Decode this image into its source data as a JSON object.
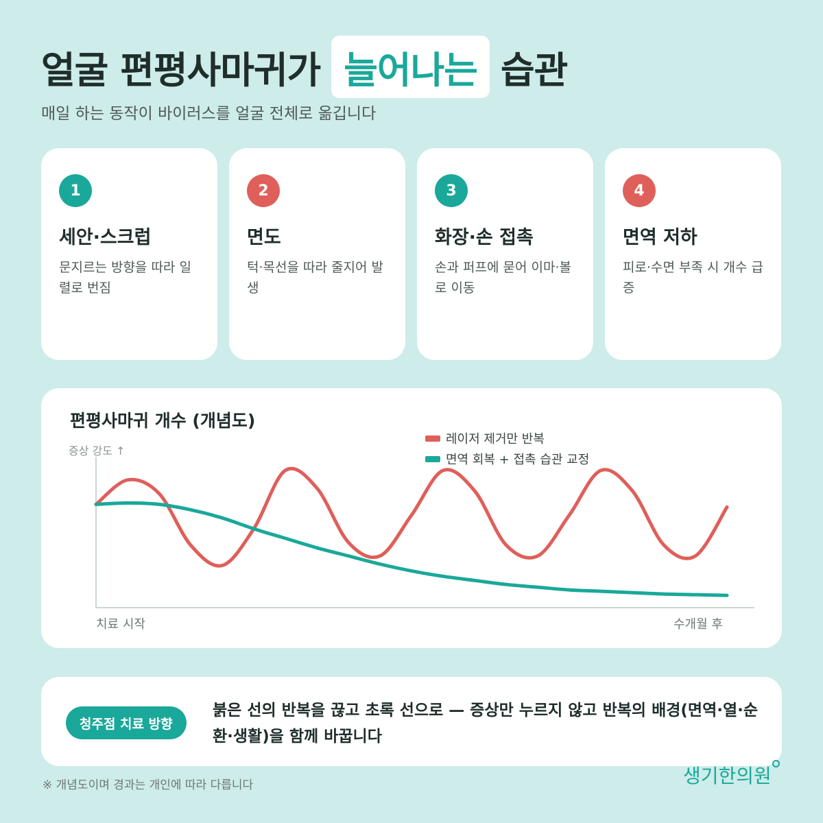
{
  "header": {
    "title_before": "얼굴 편평사마귀가",
    "title_highlight": "늘어나는",
    "title_after": "습관",
    "subtitle": "매일 하는 동작이 바이러스를 얼굴 전체로 옮깁니다"
  },
  "cards": [
    {
      "number": "1",
      "title": "세안·스크럽",
      "desc": "문지르는 방향을 따라 일렬로 번짐",
      "color": "#1aa89a"
    },
    {
      "number": "2",
      "title": "면도",
      "desc": "턱·목선을 따라 줄지어 발생",
      "color": "#df5f5a"
    },
    {
      "number": "3",
      "title": "화장·손 접촉",
      "desc": "손과 퍼프에 묻어 이마·볼로 이동",
      "color": "#1aa89a"
    },
    {
      "number": "4",
      "title": "면역 저하",
      "desc": "피로·수면 부족 시 개수 급증",
      "color": "#df5f5a"
    }
  ],
  "chart_data": {
    "type": "line",
    "title": "편평사마귀 개수 (개념도)",
    "ylabel": "증상 강도 ↑",
    "x_start_label": "치료 시작",
    "x_end_label": "수개월 후",
    "x": [
      0,
      0.05,
      0.1,
      0.15,
      0.2,
      0.25,
      0.3,
      0.35,
      0.4,
      0.45,
      0.5,
      0.55,
      0.6,
      0.65,
      0.7,
      0.75,
      0.8,
      0.85,
      0.9,
      0.95,
      1.0
    ],
    "series": [
      {
        "name": "레이저 제거만 반복",
        "color": "#df5f5a",
        "values": [
          0.7,
          0.88,
          0.78,
          0.4,
          0.25,
          0.52,
          0.95,
          0.82,
          0.42,
          0.32,
          0.62,
          0.95,
          0.8,
          0.4,
          0.32,
          0.62,
          0.95,
          0.8,
          0.4,
          0.32,
          0.68
        ]
      },
      {
        "name": "면역 회복 + 접촉 습관 교정",
        "color": "#1aa89a",
        "values": [
          0.7,
          0.71,
          0.7,
          0.66,
          0.6,
          0.52,
          0.45,
          0.38,
          0.32,
          0.26,
          0.21,
          0.17,
          0.14,
          0.11,
          0.09,
          0.07,
          0.06,
          0.05,
          0.04,
          0.035,
          0.03
        ]
      }
    ],
    "ylim": [
      0,
      1
    ],
    "grid": false,
    "legend": "top-right"
  },
  "bottom": {
    "pill": "청주점 치료 방향",
    "text": "붉은 선의 반복을 끊고 초록 선으로 — 증상만 누르지 않고 반복의 배경(면역·열·순환·생활)을 함께 바꿉니다"
  },
  "footnote": "※ 개념도이며 경과는 개인에 따라 다릅니다",
  "logo": "생기한의원"
}
